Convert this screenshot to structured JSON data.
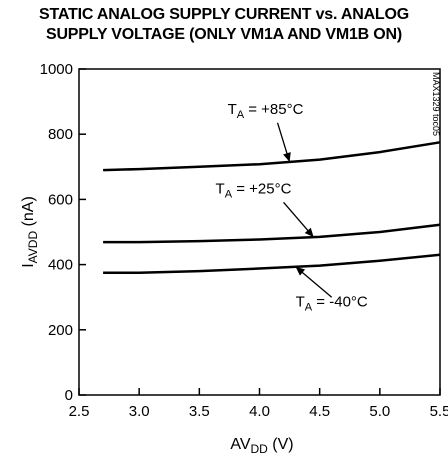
{
  "chart_data": {
    "type": "line",
    "title_line1": "STATIC ANALOG SUPPLY CURRENT vs. ANALOG",
    "title_line2": "SUPPLY VOLTAGE (ONLY VM1A AND VM1B ON)",
    "ylabel": {
      "main": "I",
      "sub": "AVDD",
      "unit": " (nA)"
    },
    "xlabel": {
      "main": "AV",
      "sub": "DD",
      "unit": " (V)"
    },
    "watermark": "MAX1329 toc05",
    "xlim": [
      2.5,
      5.5
    ],
    "ylim": [
      0,
      1000
    ],
    "xticks": [
      "2.5",
      "3.0",
      "3.5",
      "4.0",
      "4.5",
      "5.0",
      "5.5"
    ],
    "yticks": [
      "0",
      "200",
      "400",
      "600",
      "800",
      "1000"
    ],
    "xtick_values": [
      2.5,
      3.0,
      3.5,
      4.0,
      4.5,
      5.0,
      5.5
    ],
    "ytick_values": [
      0,
      200,
      400,
      600,
      800,
      1000
    ],
    "grid": false,
    "series": [
      {
        "label_main": "T",
        "label_sub": "A",
        "label_rest": " = +85°C",
        "x": [
          2.7,
          3.0,
          3.5,
          4.0,
          4.5,
          5.0,
          5.5
        ],
        "y": [
          690,
          693,
          700,
          708,
          722,
          745,
          775
        ]
      },
      {
        "label_main": "T",
        "label_sub": "A",
        "label_rest": " = +25°C",
        "x": [
          2.7,
          3.0,
          3.5,
          4.0,
          4.5,
          5.0,
          5.5
        ],
        "y": [
          469,
          469,
          472,
          477,
          485,
          500,
          522
        ]
      },
      {
        "label_main": "T",
        "label_sub": "A",
        "label_rest": " = -40°C",
        "x": [
          2.7,
          3.0,
          3.5,
          4.0,
          4.5,
          5.0,
          5.5
        ],
        "y": [
          375,
          375,
          380,
          388,
          397,
          412,
          430
        ]
      }
    ]
  }
}
